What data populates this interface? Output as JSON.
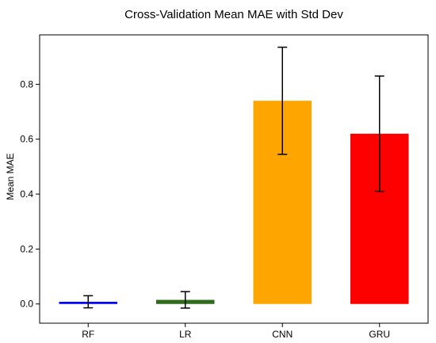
{
  "chart_data": {
    "type": "bar",
    "title": "Cross-Validation Mean MAE with Std Dev",
    "xlabel": "",
    "ylabel": "Mean MAE",
    "categories": [
      "RF",
      "LR",
      "CNN",
      "GRU"
    ],
    "values": [
      0.008,
      0.015,
      0.74,
      0.62
    ],
    "errors": [
      0.022,
      0.03,
      0.195,
      0.21
    ],
    "colors": [
      "#0000ff",
      "#2e6b1a",
      "#ffa500",
      "#ff0000"
    ],
    "yticks": [
      0.0,
      0.2,
      0.4,
      0.6,
      0.8
    ],
    "ytick_labels": [
      "0.0",
      "0.2",
      "0.4",
      "0.6",
      "0.8"
    ],
    "ylim": [
      -0.07,
      0.98
    ],
    "grid": false,
    "legend": "none"
  }
}
